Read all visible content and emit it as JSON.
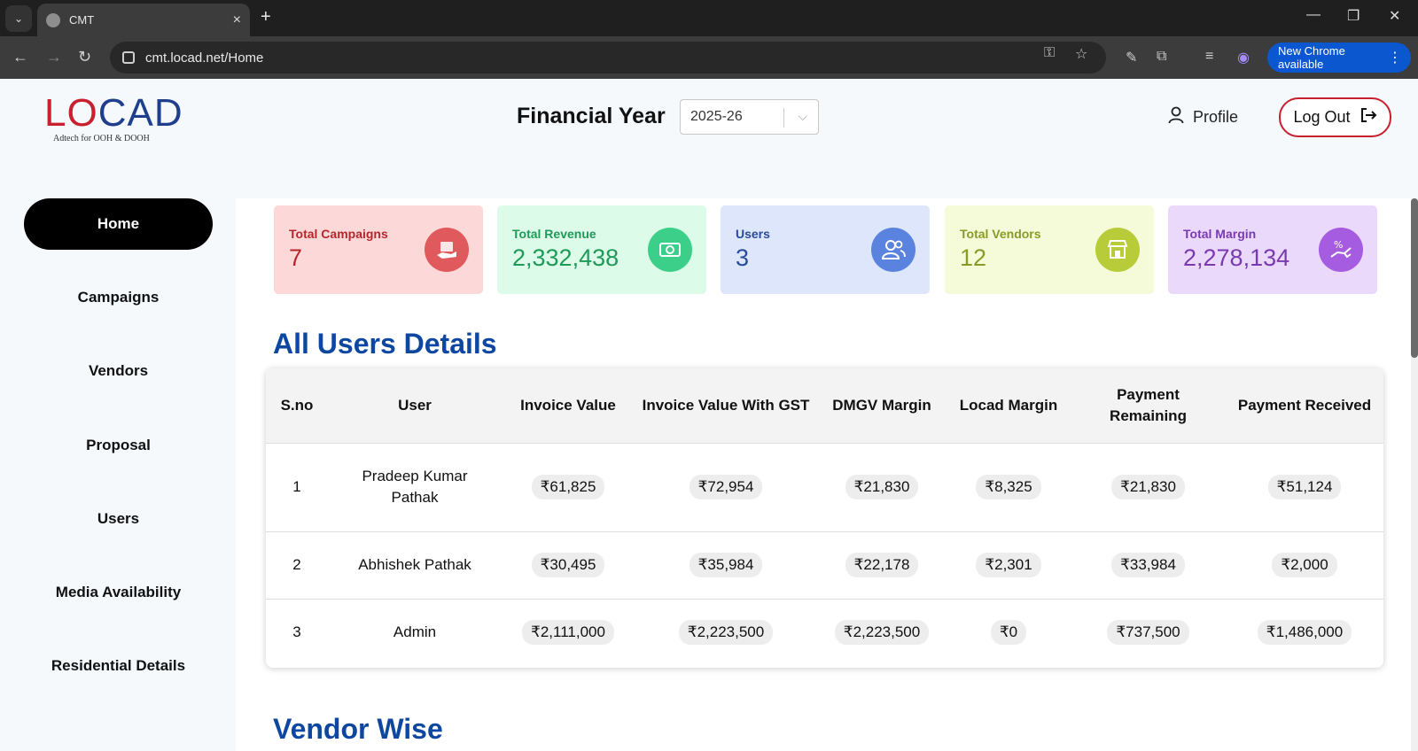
{
  "browser": {
    "tab_title": "CMT",
    "url": "cmt.locad.net/Home",
    "new_chrome_label": "New Chrome available"
  },
  "header": {
    "logo_text": "LOCAD",
    "logo_tagline": "Adtech for OOH & DOOH",
    "fy_label": "Financial Year",
    "fy_value": "2025-26",
    "profile_label": "Profile",
    "logout_label": "Log Out"
  },
  "sidebar": {
    "items": [
      {
        "label": "Home",
        "active": true
      },
      {
        "label": "Campaigns"
      },
      {
        "label": "Vendors"
      },
      {
        "label": "Proposal"
      },
      {
        "label": "Users"
      },
      {
        "label": "Media Availability"
      },
      {
        "label": "Residential Details"
      }
    ]
  },
  "cards": [
    {
      "label": "Total Campaigns",
      "value": "7",
      "bg": "#fdd8d8",
      "fg": "#b4282d",
      "icon_bg": "#e0595c",
      "icon": "campaign-icon"
    },
    {
      "label": "Total Revenue",
      "value": "2,332,438",
      "bg": "#dcfbe8",
      "fg": "#1f9a5a",
      "icon_bg": "#3ccf8a",
      "icon": "revenue-icon"
    },
    {
      "label": "Users",
      "value": "3",
      "bg": "#dde6fb",
      "fg": "#2a4a9a",
      "icon_bg": "#5a83df",
      "icon": "users-icon"
    },
    {
      "label": "Total Vendors",
      "value": "12",
      "bg": "#f5fbd8",
      "fg": "#8a9a27",
      "icon_bg": "#b8cc3a",
      "icon": "store-icon"
    },
    {
      "label": "Total Margin",
      "value": "2,278,134",
      "bg": "#ead9fb",
      "fg": "#7a3aaf",
      "icon_bg": "#a55ce0",
      "icon": "margin-icon"
    }
  ],
  "users_section": {
    "title": "All Users Details",
    "columns": [
      "S.no",
      "User",
      "Invoice Value",
      "Invoice Value With GST",
      "DMGV Margin",
      "Locad Margin",
      "Payment Remaining",
      "Payment Received"
    ],
    "rows": [
      {
        "sno": "1",
        "user": "Pradeep Kumar Pathak",
        "invoice": "₹61,825",
        "invoice_gst": "₹72,954",
        "dmgv": "₹21,830",
        "locad": "₹8,325",
        "remaining": "₹21,830",
        "received": "₹51,124"
      },
      {
        "sno": "2",
        "user": "Abhishek Pathak",
        "invoice": "₹30,495",
        "invoice_gst": "₹35,984",
        "dmgv": "₹22,178",
        "locad": "₹2,301",
        "remaining": "₹33,984",
        "received": "₹2,000"
      },
      {
        "sno": "3",
        "user": "Admin",
        "invoice": "₹2,111,000",
        "invoice_gst": "₹2,223,500",
        "dmgv": "₹2,223,500",
        "locad": "₹0",
        "remaining": "₹737,500",
        "received": "₹1,486,000"
      }
    ]
  },
  "vendor_section": {
    "title": "Vendor Wise"
  }
}
